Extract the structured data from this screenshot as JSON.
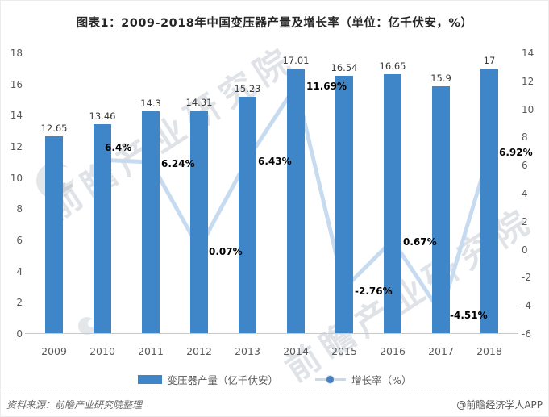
{
  "page": {
    "title": "图表1：2009-2018年中国变压器产量及增长率（单位：亿千伏安，%）",
    "watermark": "前瞻产业研究院",
    "footer_source": "资料来源：前瞻产业研究院整理",
    "footer_brand": "@前瞻经济学人APP"
  },
  "chart_data": {
    "type": "combo-bar-line",
    "title": "图表1：2009-2018年中国变压器产量及增长率（单位：亿千伏安，%）",
    "categories": [
      "2009",
      "2010",
      "2011",
      "2012",
      "2013",
      "2014",
      "2015",
      "2016",
      "2017",
      "2018"
    ],
    "series": [
      {
        "name": "变压器产量（亿千伏安）",
        "type": "bar",
        "axis": "left",
        "color": "#3E86C8",
        "values": [
          12.65,
          13.46,
          14.3,
          14.31,
          15.23,
          17.01,
          16.54,
          16.65,
          15.9,
          17
        ],
        "labels": [
          "12.65",
          "13.46",
          "14.3",
          "14.31",
          "15.23",
          "17.01",
          "16.54",
          "16.65",
          "15.9",
          "17"
        ]
      },
      {
        "name": "增长率（%）",
        "type": "line",
        "axis": "right",
        "line_color": "#C7DBF0",
        "marker_color": "#4B80BE",
        "marker_ring_color": "#D7E5F4",
        "values": [
          null,
          6.4,
          6.24,
          0.07,
          6.43,
          11.69,
          -2.76,
          0.67,
          -4.51,
          6.92
        ],
        "labels": [
          null,
          "6.4%",
          "6.24%",
          "0.07%",
          "6.43%",
          "11.69%",
          "-2.76%",
          "0.67%",
          "-4.51%",
          "6.92%"
        ],
        "label_offsets": [
          null,
          [
            3,
            -15
          ],
          [
            13,
            2
          ],
          [
            12,
            4
          ],
          [
            13,
            3
          ],
          [
            13,
            1
          ],
          [
            13,
            4
          ],
          [
            13,
            3
          ],
          [
            11,
            3
          ],
          [
            12,
            0
          ]
        ]
      }
    ],
    "left_axis": {
      "min": 0,
      "max": 18,
      "step": 2,
      "ticks": [
        18,
        16,
        14,
        12,
        10,
        8,
        6,
        4,
        2,
        0
      ]
    },
    "right_axis": {
      "min": -6,
      "max": 14,
      "step": 2,
      "ticks": [
        14,
        12,
        10,
        8,
        6,
        4,
        2,
        0,
        -2,
        -4,
        -6
      ]
    },
    "grid": false,
    "legend_position": "bottom"
  }
}
